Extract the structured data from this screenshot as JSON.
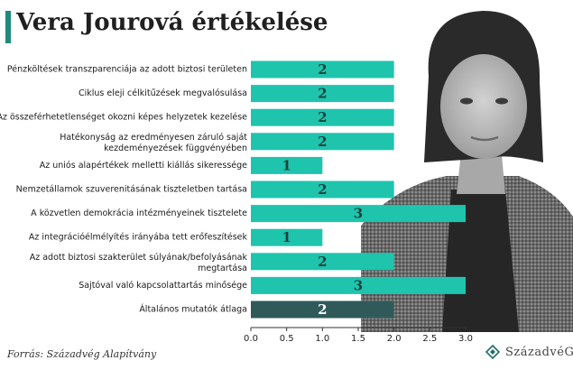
{
  "header": {
    "title": "Vera Jourová értékelése"
  },
  "footer": {
    "source": "Forrás: Századvég Alapítvány",
    "brand": "SzázadvéG"
  },
  "colors": {
    "accent": "#1fc4ad",
    "highlight": "#2f5a59",
    "title_bar": "#1f8a7c",
    "value_text": "#1d3f3a"
  },
  "chart_data": {
    "type": "bar",
    "orientation": "horizontal",
    "categories": [
      "Pénzköltések transzparenciája az adott biztosi területen",
      "Ciklus eleji célkitűzések megvalósulása",
      "Az összeférhetetlenséget okozni képes helyzetek kezelése",
      "Hatékonyság az eredményesen záruló saját kezdeményezések függvényében",
      "Az uniós alapértékek melletti kiállás sikeressége",
      "Nemzetállamok szuverenitásának tiszteletben tartása",
      "A közvetlen demokrácia intézményeinek tisztelete",
      "Az integrációélmélyítés irányába tett erőfeszítések",
      "Az adott biztosi szakterület súlyának/befolyásának megtartása",
      "Sajtóval való kapcsolattartás minősége",
      "Általános mutatók átlaga"
    ],
    "values": [
      2,
      2,
      2,
      2,
      1,
      2,
      3,
      1,
      2,
      3,
      2
    ],
    "value_labels": [
      "2",
      "2",
      "2",
      "2",
      "1",
      "2",
      "3",
      "1",
      "2",
      "3",
      "2"
    ],
    "highlighted_index": 10,
    "xlim": [
      0,
      3
    ],
    "xticks": [
      "0.0",
      "0.5",
      "1.0",
      "1.5",
      "2.0",
      "2.5",
      "3.0"
    ],
    "grid": false
  }
}
